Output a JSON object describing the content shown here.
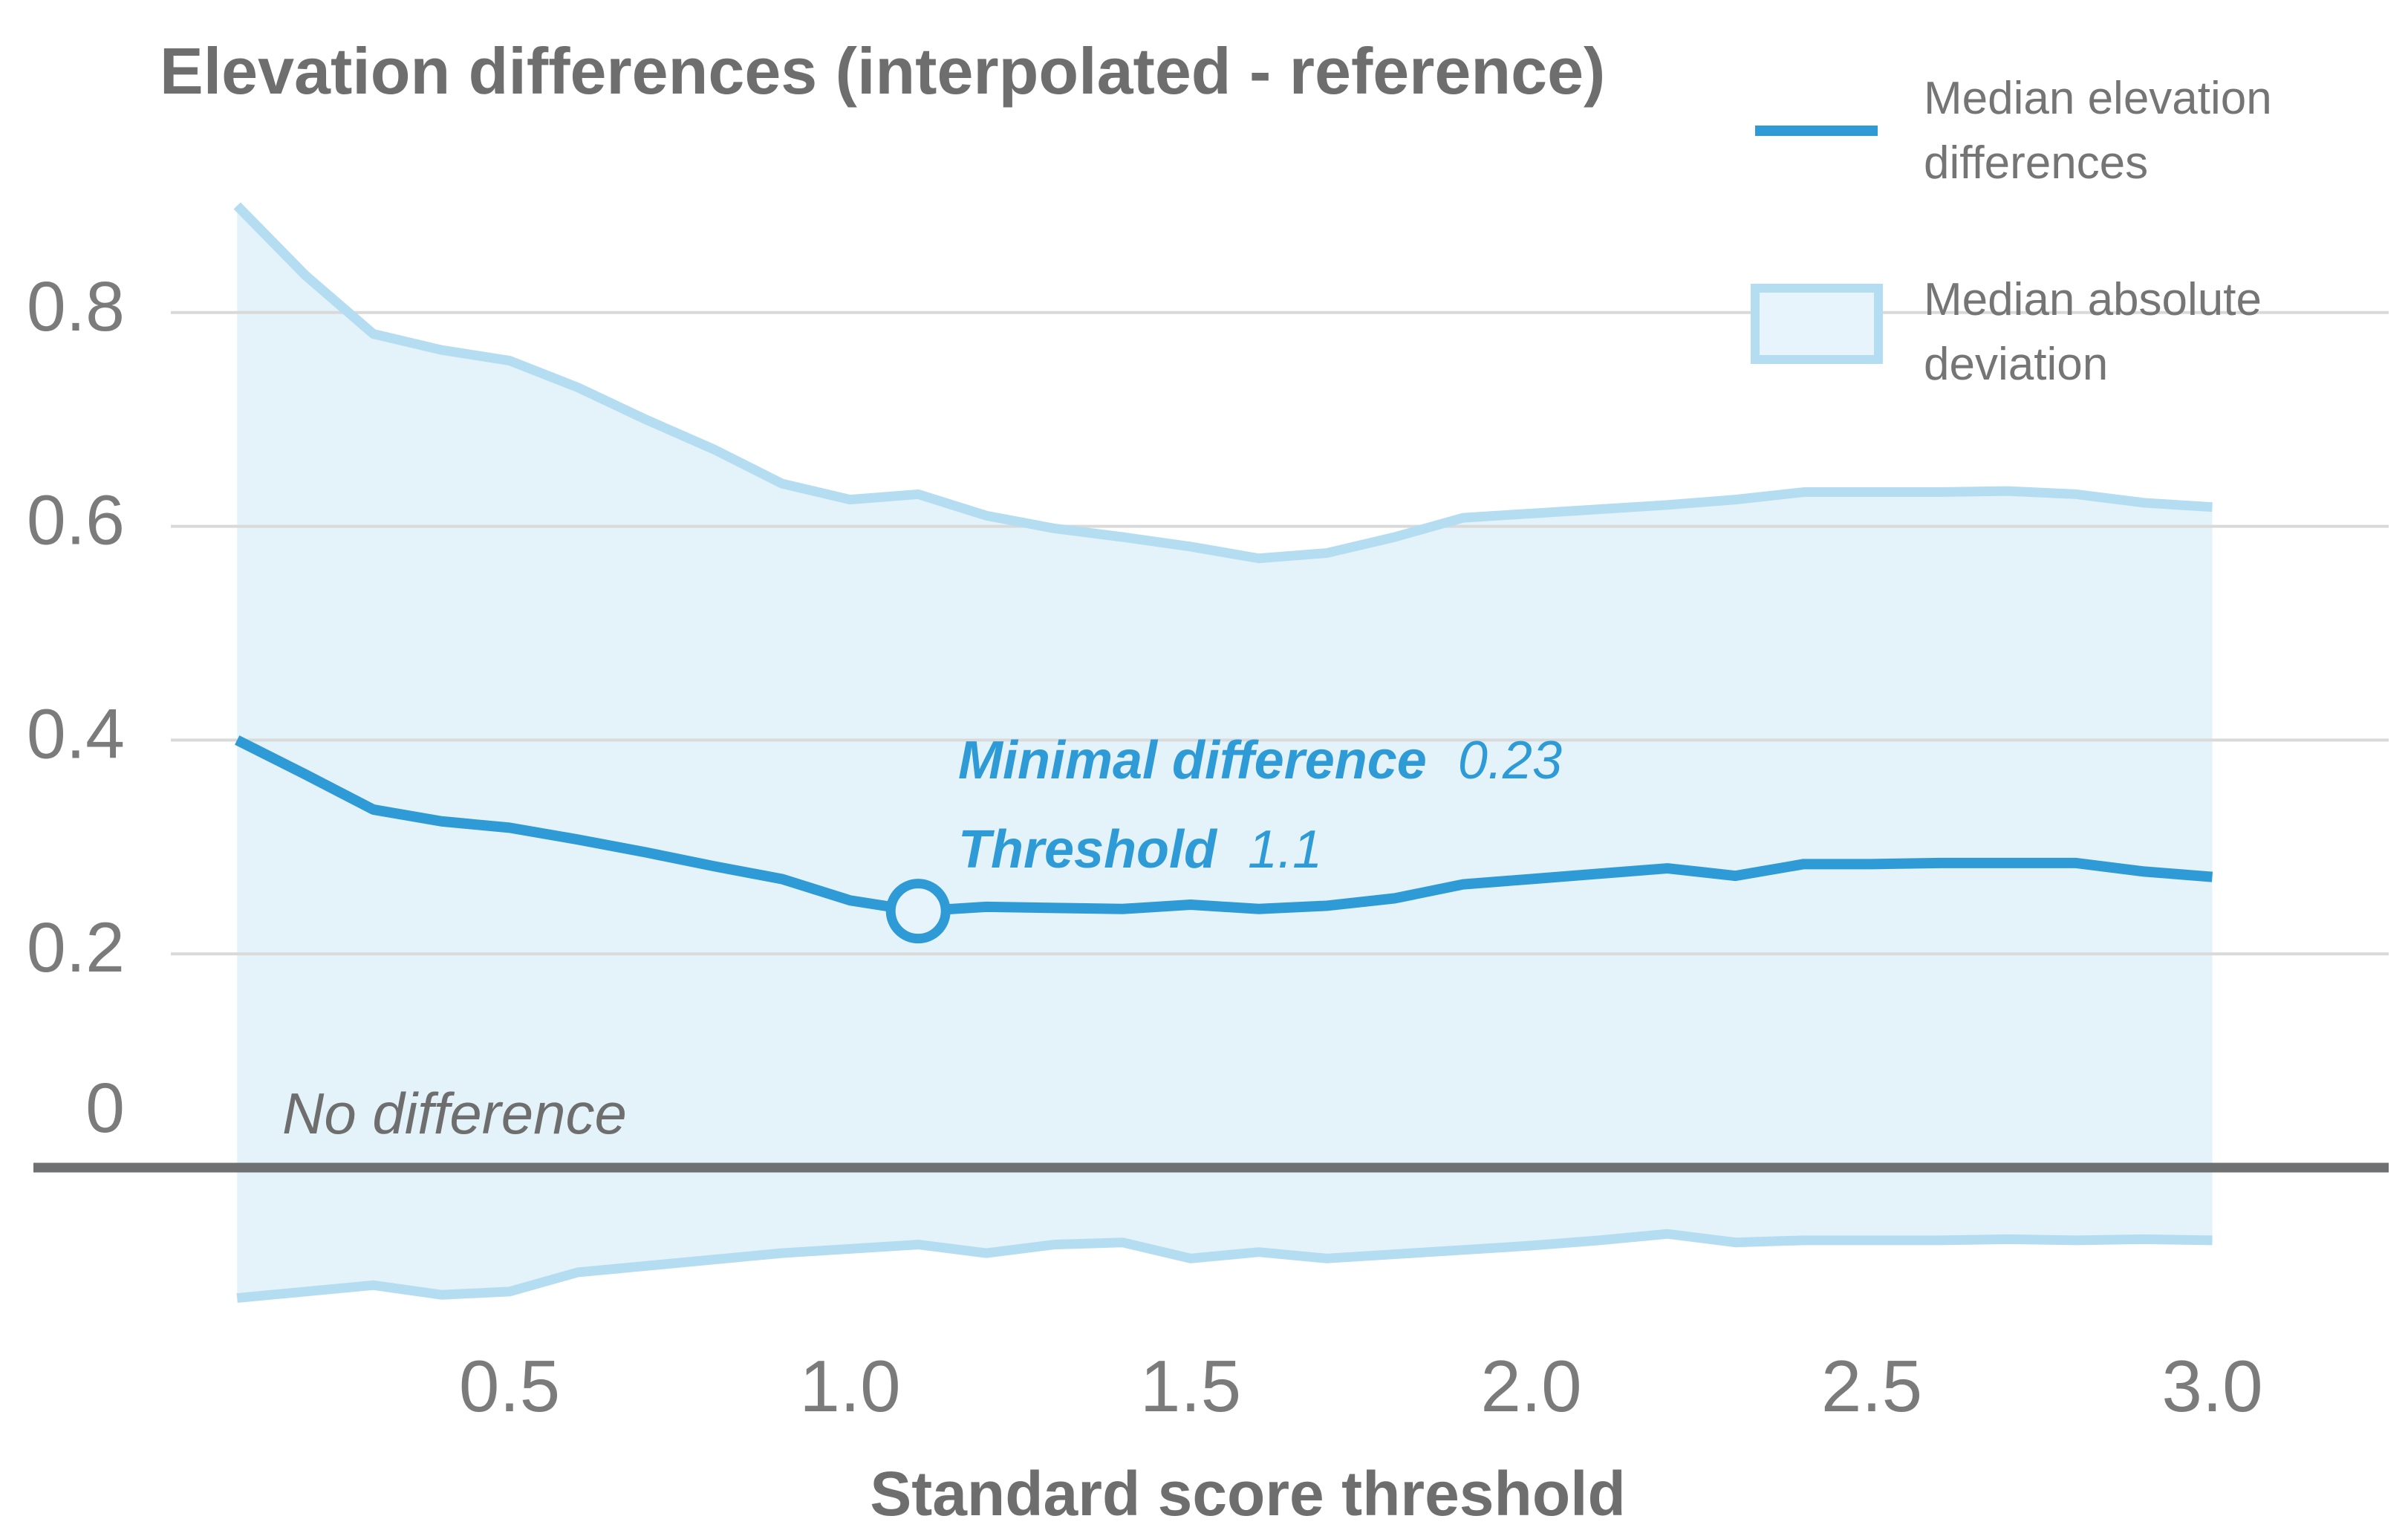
{
  "title": "Elevation differences (interpolated - reference)",
  "legend": {
    "items": [
      {
        "label_lines": [
          "Median elevation",
          "differences"
        ],
        "swatch": "line"
      },
      {
        "label_lines": [
          "Median absolute",
          "deviation"
        ],
        "swatch": "box"
      }
    ]
  },
  "annotations": {
    "minimal_difference_label": "Minimal difference",
    "minimal_difference_value": "0.23",
    "threshold_label": "Threshold",
    "threshold_value": "1.1",
    "zero_line_label": "No difference"
  },
  "x_axis": {
    "title": "Standard score threshold",
    "ticks": [
      0.5,
      1.0,
      1.5,
      2.0,
      2.5,
      3.0
    ]
  },
  "y_axis": {
    "ticks": [
      0.8,
      0.6,
      0.4,
      0.2,
      0
    ]
  },
  "colors": {
    "line": "#2E9BD6",
    "band_fill": "#E4F3FA",
    "band_edge": "#B5DDF2",
    "marker_fill": "#E8F4FB",
    "grid": "#D9D9D9",
    "zero_line": "#6F7072",
    "text_gray": "#757575",
    "title_gray": "#6E6E6E"
  },
  "chart_data": {
    "type": "line",
    "title": "Elevation differences (interpolated - reference)",
    "xlabel": "Standard score threshold",
    "ylabel": "",
    "xlim": [
      0.1,
      3.0
    ],
    "ylim": [
      -0.17,
      0.95
    ],
    "grid": "horizontal",
    "legend_position": "top-right",
    "x": [
      0.1,
      0.2,
      0.3,
      0.4,
      0.5,
      0.6,
      0.7,
      0.8,
      0.9,
      1.0,
      1.1,
      1.2,
      1.3,
      1.4,
      1.5,
      1.6,
      1.7,
      1.8,
      1.9,
      2.0,
      2.1,
      2.2,
      2.3,
      2.4,
      2.5,
      2.6,
      2.7,
      2.8,
      2.9,
      3.0
    ],
    "series": [
      {
        "name": "Median elevation differences",
        "values": [
          0.4,
          0.368,
          0.335,
          0.324,
          0.318,
          0.307,
          0.295,
          0.282,
          0.27,
          0.25,
          0.24,
          0.244,
          0.243,
          0.242,
          0.246,
          0.242,
          0.245,
          0.252,
          0.265,
          0.27,
          0.275,
          0.28,
          0.273,
          0.284,
          0.284,
          0.285,
          0.285,
          0.285,
          0.277,
          0.272
        ]
      },
      {
        "name": "Median absolute deviation (upper)",
        "values": [
          0.9,
          0.835,
          0.78,
          0.765,
          0.755,
          0.73,
          0.7,
          0.672,
          0.64,
          0.625,
          0.63,
          0.61,
          0.598,
          0.59,
          0.581,
          0.57,
          0.575,
          0.59,
          0.608,
          0.612,
          0.616,
          0.62,
          0.625,
          0.632,
          0.632,
          0.632,
          0.633,
          0.63,
          0.622,
          0.618
        ]
      },
      {
        "name": "Median absolute deviation (lower)",
        "values": [
          -0.122,
          -0.116,
          -0.11,
          -0.119,
          -0.116,
          -0.098,
          -0.092,
          -0.086,
          -0.08,
          -0.076,
          -0.072,
          -0.08,
          -0.072,
          -0.07,
          -0.085,
          -0.079,
          -0.085,
          -0.081,
          -0.077,
          -0.073,
          -0.068,
          -0.062,
          -0.07,
          -0.068,
          -0.068,
          -0.068,
          -0.067,
          -0.068,
          -0.067,
          -0.068
        ]
      }
    ],
    "marker": {
      "x": 1.1,
      "labeled_value": 0.23
    }
  }
}
